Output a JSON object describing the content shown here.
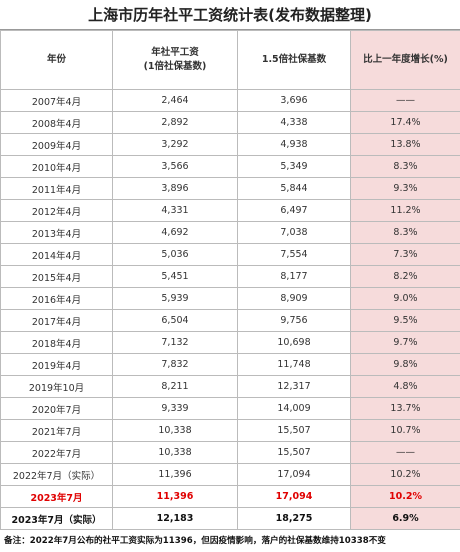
{
  "title": "上海市历年社平工资统计表(发布数据整理)",
  "table": {
    "header": [
      "年份",
      [
        "年社平工资",
        "(1倍社保基数)"
      ],
      "1.5倍社保基数",
      "比上一年度增长(%)"
    ],
    "rows": [
      [
        "2007年4月",
        "2,464",
        "3,696",
        "——"
      ],
      [
        "2008年4月",
        "2,892",
        "4,338",
        "17.4%"
      ],
      [
        "2009年4月",
        "3,292",
        "4,938",
        "13.8%"
      ],
      [
        "2010年4月",
        "3,566",
        "5,349",
        "8.3%"
      ],
      [
        "2011年4月",
        "3,896",
        "5,844",
        "9.3%"
      ],
      [
        "2012年4月",
        "4,331",
        "6,497",
        "11.2%"
      ],
      [
        "2013年4月",
        "4,692",
        "7,038",
        "8.3%"
      ],
      [
        "2014年4月",
        "5,036",
        "7,554",
        "7.3%"
      ],
      [
        "2015年4月",
        "5,451",
        "8,177",
        "8.2%"
      ],
      [
        "2016年4月",
        "5,939",
        "8,909",
        "9.0%"
      ],
      [
        "2017年4月",
        "6,504",
        "9,756",
        "9.5%"
      ],
      [
        "2018年4月",
        "7,132",
        "10,698",
        "9.7%"
      ],
      [
        "2019年4月",
        "7,832",
        "11,748",
        "9.8%"
      ],
      [
        "2019年10月",
        "8,211",
        "12,317",
        "4.8%"
      ],
      [
        "2020年7月",
        "9,339",
        "14,009",
        "13.7%"
      ],
      [
        "2021年7月",
        "10,338",
        "15,507",
        "10.7%"
      ],
      [
        "2022年7月",
        "10,338",
        "15,507",
        "——"
      ],
      [
        "2022年7月（实际）",
        "11,396",
        "17,094",
        "10.2%"
      ],
      [
        "2023年7月",
        "11,396",
        "17,094",
        "10.2%"
      ],
      [
        "2023年7月（实际）",
        "12,183",
        "18,275",
        "6.9%"
      ]
    ]
  },
  "note": "备注：2022年7月公布的社平工资实际为11396，但因疫情影响，落户的社保基数维持10338不变"
}
